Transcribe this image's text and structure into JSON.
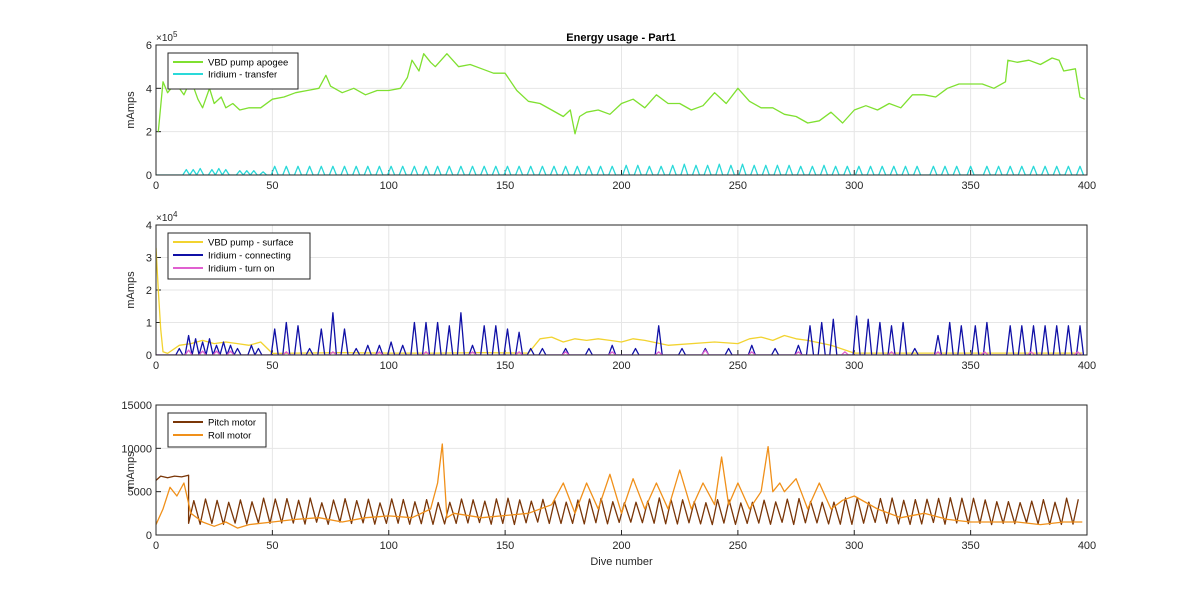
{
  "figure_title": "Energy usage - Part1",
  "colors": {
    "vbd_apogee": "#7fe030",
    "iridium_transfer": "#2ad9d9",
    "vbd_surface": "#f2d330",
    "iridium_connecting": "#1010a6",
    "iridium_turn_on": "#e060d0",
    "pitch_motor": "#7a3608",
    "roll_motor": "#f0901a",
    "grid": "#e6e6e6",
    "axis": "#262626"
  },
  "chart_data": [
    {
      "type": "line",
      "ylabel": "mAmps",
      "xlabel": "",
      "xlim": [
        0,
        400
      ],
      "ylim": [
        0,
        600000
      ],
      "xticks": [
        "0",
        "50",
        "100",
        "150",
        "200",
        "250",
        "300",
        "350",
        "400"
      ],
      "yticks": [
        "0",
        "2",
        "4",
        "6"
      ],
      "exponent_label": "×10",
      "exponent": "5",
      "grid": true,
      "legend": "top-left",
      "series": [
        {
          "name": "VBD pump apogee",
          "color_key": "vbd_apogee",
          "x": [
            1,
            3,
            5,
            8,
            10,
            12,
            15,
            18,
            20,
            23,
            25,
            28,
            30,
            33,
            36,
            40,
            45,
            50,
            55,
            60,
            65,
            70,
            73,
            75,
            80,
            85,
            90,
            95,
            100,
            105,
            108,
            110,
            113,
            115,
            118,
            120,
            125,
            130,
            135,
            140,
            145,
            150,
            155,
            160,
            165,
            170,
            175,
            178,
            180,
            182,
            185,
            190,
            195,
            200,
            205,
            210,
            215,
            220,
            225,
            230,
            235,
            240,
            245,
            250,
            255,
            260,
            265,
            270,
            275,
            280,
            285,
            290,
            295,
            300,
            305,
            310,
            315,
            320,
            325,
            330,
            335,
            340,
            345,
            350,
            355,
            360,
            365,
            366,
            370,
            375,
            380,
            385,
            388,
            390,
            395,
            397,
            399
          ],
          "y": [
            200000,
            430000,
            380000,
            420000,
            400000,
            370000,
            440000,
            350000,
            310000,
            400000,
            330000,
            360000,
            310000,
            330000,
            300000,
            310000,
            310000,
            350000,
            360000,
            380000,
            390000,
            400000,
            460000,
            410000,
            380000,
            400000,
            370000,
            390000,
            390000,
            400000,
            450000,
            530000,
            480000,
            560000,
            520000,
            500000,
            560000,
            500000,
            510000,
            490000,
            470000,
            470000,
            390000,
            340000,
            330000,
            300000,
            270000,
            300000,
            190000,
            270000,
            290000,
            300000,
            280000,
            330000,
            350000,
            310000,
            370000,
            330000,
            330000,
            300000,
            320000,
            380000,
            330000,
            400000,
            340000,
            310000,
            310000,
            280000,
            270000,
            240000,
            250000,
            290000,
            240000,
            300000,
            320000,
            300000,
            330000,
            310000,
            370000,
            370000,
            360000,
            400000,
            420000,
            420000,
            420000,
            400000,
            430000,
            530000,
            520000,
            530000,
            510000,
            540000,
            530000,
            480000,
            490000,
            360000,
            350000
          ]
        },
        {
          "name": "Iridium - transfer",
          "color_key": "iridium_transfer",
          "spikes": {
            "x": [
              13,
              16,
              19,
              24,
              27,
              30,
              36,
              39,
              42,
              46,
              51,
              56,
              61,
              66,
              71,
              76,
              81,
              86,
              91,
              96,
              101,
              106,
              111,
              116,
              121,
              126,
              131,
              136,
              141,
              146,
              151,
              156,
              161,
              166,
              171,
              176,
              181,
              186,
              191,
              196,
              202,
              207,
              212,
              217,
              222,
              227,
              232,
              237,
              242,
              247,
              252,
              257,
              262,
              267,
              272,
              277,
              282,
              287,
              292,
              297,
              302,
              307,
              312,
              317,
              322,
              327,
              334,
              339,
              344,
              350,
              357,
              362,
              367,
              372,
              377,
              382,
              387,
              392,
              397
            ],
            "heights": [
              25000,
              25000,
              30000,
              25000,
              30000,
              25000,
              20000,
              20000,
              20000,
              15000,
              40000,
              40000,
              40000,
              40000,
              40000,
              40000,
              40000,
              40000,
              40000,
              40000,
              40000,
              40000,
              40000,
              40000,
              40000,
              40000,
              40000,
              40000,
              40000,
              40000,
              40000,
              40000,
              40000,
              40000,
              40000,
              40000,
              40000,
              40000,
              40000,
              40000,
              45000,
              45000,
              40000,
              40000,
              45000,
              50000,
              45000,
              45000,
              50000,
              45000,
              50000,
              45000,
              45000,
              45000,
              45000,
              40000,
              40000,
              45000,
              40000,
              40000,
              40000,
              40000,
              40000,
              40000,
              40000,
              40000,
              40000,
              40000,
              40000,
              40000,
              40000,
              40000,
              40000,
              40000,
              40000,
              40000,
              40000,
              40000,
              40000
            ],
            "width": 3
          }
        }
      ]
    },
    {
      "type": "line",
      "ylabel": "mAmps",
      "xlabel": "",
      "xlim": [
        0,
        400
      ],
      "ylim": [
        0,
        40000
      ],
      "xticks": [
        "0",
        "50",
        "100",
        "150",
        "200",
        "250",
        "300",
        "350",
        "400"
      ],
      "yticks": [
        "0",
        "1",
        "2",
        "3",
        "4"
      ],
      "exponent_label": "×10",
      "exponent": "4",
      "grid": true,
      "legend": "top-left",
      "series": [
        {
          "name": "VBD pump - surface",
          "color_key": "vbd_surface",
          "x": [
            0,
            1,
            2,
            3,
            5,
            10,
            15,
            20,
            25,
            30,
            35,
            40,
            45,
            50,
            60,
            80,
            100,
            120,
            140,
            160,
            165,
            170,
            175,
            180,
            185,
            190,
            195,
            200,
            205,
            210,
            220,
            240,
            250,
            255,
            260,
            265,
            270,
            275,
            280,
            290,
            300,
            320,
            340,
            360,
            380,
            398
          ],
          "y": [
            33000,
            20000,
            8000,
            1000,
            500,
            3000,
            3500,
            4500,
            3500,
            4000,
            3500,
            3000,
            4000,
            500,
            600,
            700,
            600,
            600,
            700,
            600,
            5000,
            5500,
            4000,
            5000,
            4500,
            5000,
            4500,
            4000,
            5000,
            4500,
            3000,
            4000,
            3500,
            5000,
            5500,
            4500,
            6000,
            5000,
            4500,
            3000,
            600,
            600,
            600,
            600,
            600,
            600
          ]
        },
        {
          "name": "Iridium - connecting",
          "color_key": "iridium_connecting",
          "spikes": {
            "x": [
              10,
              14,
              17,
              20,
              23,
              26,
              29,
              32,
              35,
              41,
              44,
              51,
              56,
              61,
              66,
              71,
              76,
              81,
              86,
              91,
              96,
              101,
              106,
              111,
              116,
              121,
              126,
              131,
              136,
              141,
              146,
              151,
              156,
              161,
              166,
              176,
              186,
              196,
              206,
              216,
              226,
              236,
              246,
              256,
              266,
              276,
              281,
              286,
              291,
              301,
              306,
              311,
              316,
              321,
              326,
              336,
              341,
              346,
              352,
              357,
              367,
              372,
              377,
              382,
              387,
              392,
              397
            ],
            "heights": [
              2000,
              6000,
              5000,
              4000,
              5000,
              3000,
              4000,
              3000,
              2000,
              3000,
              2000,
              8000,
              10000,
              9000,
              2000,
              8000,
              13000,
              8000,
              2000,
              3000,
              3000,
              4000,
              3000,
              10000,
              10000,
              10000,
              9000,
              13000,
              3000,
              9000,
              9000,
              8000,
              7000,
              2000,
              2000,
              2000,
              2000,
              3000,
              2000,
              9000,
              2000,
              2000,
              2000,
              3000,
              2000,
              3000,
              9000,
              10000,
              11000,
              12000,
              11000,
              10000,
              9000,
              10000,
              2000,
              6000,
              10000,
              9000,
              9000,
              10000,
              9000,
              9000,
              9000,
              9000,
              9000,
              9000,
              9000
            ],
            "width": 3
          }
        },
        {
          "name": "Iridium - turn on",
          "color_key": "iridium_turn_on",
          "spikes": {
            "x": [
              14,
              20,
              26,
              32,
              56,
              76,
              96,
              116,
              136,
              156,
              176,
              196,
              216,
              236,
              256,
              276,
              296,
              316,
              336,
              356,
              376,
              396
            ],
            "heights": [
              1500,
              1200,
              1200,
              1200,
              1000,
              1000,
              1000,
              1000,
              1000,
              1000,
              1000,
              1000,
              1000,
              1500,
              1000,
              1000,
              1000,
              1000,
              1000,
              1000,
              1000,
              1000
            ],
            "width": 3
          }
        }
      ]
    },
    {
      "type": "line",
      "ylabel": "mAmps",
      "xlabel": "Dive number",
      "xlim": [
        0,
        400
      ],
      "ylim": [
        0,
        15000
      ],
      "xticks": [
        "0",
        "50",
        "100",
        "150",
        "200",
        "250",
        "300",
        "350",
        "400"
      ],
      "yticks": [
        "0",
        "5000",
        "10000",
        "15000"
      ],
      "grid": true,
      "legend": "top-left",
      "series": [
        {
          "name": "Pitch motor",
          "color_key": "pitch_motor",
          "x": [
            0,
            2,
            5,
            8,
            11,
            14
          ],
          "y": [
            6300,
            6800,
            6600,
            6800,
            6700,
            6900
          ],
          "oscillation": {
            "x_start": 14,
            "x_end": 398,
            "period": 5,
            "low": 1200,
            "high": 4300,
            "jitter": 600
          }
        },
        {
          "name": "Roll motor",
          "color_key": "roll_motor",
          "x": [
            0,
            3,
            6,
            9,
            12,
            15,
            20,
            25,
            30,
            35,
            40,
            50,
            60,
            70,
            80,
            90,
            100,
            110,
            118,
            121,
            123,
            125,
            128,
            140,
            160,
            170,
            175,
            180,
            185,
            190,
            195,
            200,
            205,
            210,
            215,
            220,
            225,
            230,
            235,
            240,
            243,
            246,
            250,
            255,
            260,
            263,
            265,
            268,
            270,
            275,
            280,
            285,
            290,
            295,
            300,
            310,
            320,
            330,
            340,
            350,
            360,
            370,
            380,
            390,
            398
          ],
          "y": [
            1200,
            3000,
            5500,
            4500,
            6000,
            2500,
            1500,
            1000,
            1500,
            800,
            1200,
            1500,
            1800,
            2000,
            1500,
            2000,
            2200,
            2000,
            3000,
            6000,
            10500,
            2000,
            2500,
            2000,
            2500,
            3500,
            6000,
            2500,
            6000,
            3000,
            7000,
            2500,
            6500,
            3000,
            6000,
            3000,
            7500,
            3000,
            6000,
            3500,
            9000,
            3500,
            6000,
            3000,
            5000,
            10200,
            5000,
            6000,
            5000,
            6500,
            3000,
            6000,
            3000,
            4000,
            4500,
            3000,
            2000,
            2500,
            1800,
            1500,
            1500,
            1500,
            1200,
            1500,
            1500
          ]
        }
      ]
    }
  ]
}
